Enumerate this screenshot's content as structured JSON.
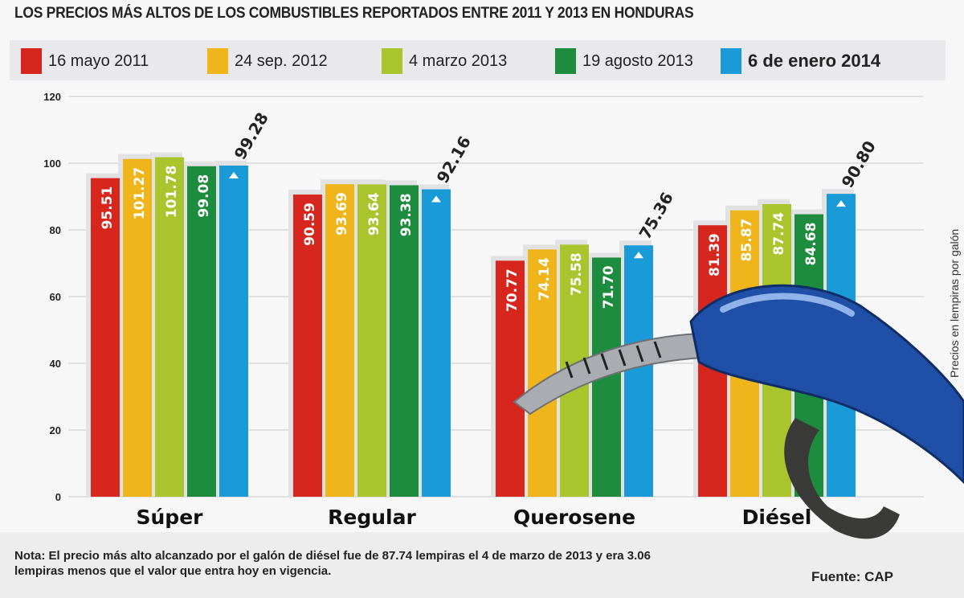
{
  "title": "LOS PRECIOS MÁS ALTOS  DE  LOS COMBUSTIBLES REPORTADOS ENTRE 2011 Y 2013 EN HONDURAS",
  "note": "Nota: El precio más alto alcanzado por el galón de diésel fue de 87.74 lempiras el 4 de marzo de 2013 y era 3.06 lempiras menos que el valor que entra hoy en vigencia.",
  "source": "Fuente: CAP",
  "chart_data": {
    "type": "bar",
    "title": "LOS PRECIOS MÁS ALTOS  DE  LOS COMBUSTIBLES REPORTADOS ENTRE 2011 Y 2013 EN HONDURAS",
    "xlabel": "",
    "ylabel": "Precios en lempiras por galón",
    "ylim": [
      0,
      120
    ],
    "yticks": [
      "0",
      "20",
      "40",
      "60",
      "80",
      "100",
      "120"
    ],
    "grid": true,
    "legend_position": "top",
    "categories": [
      "Súper",
      "Regular",
      "Querosene",
      "Diésel"
    ],
    "series": [
      {
        "name": "16 mayo 2011",
        "color": "#d7261e",
        "values": [
          95.51,
          90.59,
          70.77,
          81.39
        ],
        "labels": [
          "95.51",
          "90.59",
          "70.77",
          "81.39"
        ]
      },
      {
        "name": "24 sep. 2012",
        "color": "#efb51a",
        "values": [
          101.27,
          93.69,
          74.14,
          85.87
        ],
        "labels": [
          "101.27",
          "93.69",
          "74.14",
          "85.87"
        ]
      },
      {
        "name": "4 marzo 2013",
        "color": "#a9c42c",
        "values": [
          101.78,
          93.64,
          75.58,
          87.74
        ],
        "labels": [
          "101.78",
          "93.64",
          "75.58",
          "87.74"
        ]
      },
      {
        "name": "19 agosto 2013",
        "color": "#1e8c3f",
        "values": [
          99.08,
          93.38,
          71.7,
          84.68
        ],
        "labels": [
          "99.08",
          "93.38",
          "71.70",
          "84.68"
        ]
      },
      {
        "name": "6 de enero 2014",
        "color": "#1a9bd7",
        "values": [
          99.28,
          92.16,
          75.36,
          90.8
        ],
        "labels": [
          "99.28",
          "92.16",
          "75.36",
          "90.80"
        ]
      }
    ]
  }
}
